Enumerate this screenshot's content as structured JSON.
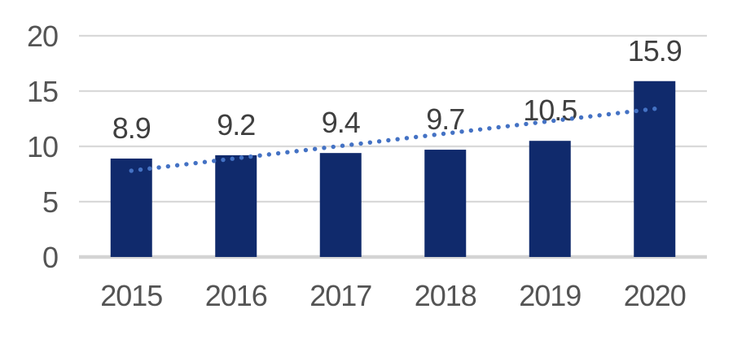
{
  "chart_data": {
    "type": "bar",
    "title": "",
    "xlabel": "",
    "ylabel": "",
    "categories": [
      "2015",
      "2016",
      "2017",
      "2018",
      "2019",
      "2020"
    ],
    "values": [
      8.9,
      9.2,
      9.4,
      9.7,
      10.5,
      15.9
    ],
    "data_labels": [
      "8.9",
      "9.2",
      "9.4",
      "9.7",
      "10.5",
      "15.9"
    ],
    "ylim": [
      0,
      20
    ],
    "yticks": [
      0,
      5,
      10,
      15,
      20
    ],
    "grid": true,
    "legend": "none",
    "trendline": {
      "type": "linear",
      "style": "dotted",
      "start_value": 7.8,
      "end_value": 13.4
    },
    "colors": {
      "bar": "#102A6C",
      "trendline": "#4472C4",
      "gridline": "#D9D9D9",
      "axis_line": "#D4D4D4",
      "tick_label": "#545454",
      "data_label": "#3F3F3F",
      "background": "#FFFFFF"
    }
  }
}
